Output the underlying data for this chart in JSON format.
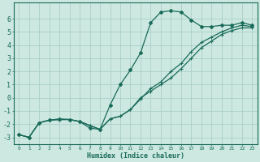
{
  "xlabel": "Humidex (Indice chaleur)",
  "background_color": "#cce8e0",
  "grid_color": "#aacfc8",
  "line_color": "#1a6b5a",
  "xlim": [
    -0.5,
    23.5
  ],
  "ylim": [
    -3.5,
    7.2
  ],
  "x_ticks": [
    0,
    1,
    2,
    3,
    4,
    5,
    6,
    7,
    8,
    9,
    10,
    11,
    12,
    13,
    14,
    15,
    16,
    17,
    18,
    19,
    20,
    21,
    22,
    23
  ],
  "y_ticks": [
    -3,
    -2,
    -1,
    0,
    1,
    2,
    3,
    4,
    5,
    6
  ],
  "curve1_x": [
    0,
    1,
    2,
    3,
    4,
    5,
    6,
    7,
    8,
    9,
    10,
    11,
    12,
    13,
    14,
    15,
    16,
    17,
    18,
    19,
    20,
    21,
    22,
    23
  ],
  "curve1_y": [
    -2.8,
    -3.0,
    -1.9,
    -1.7,
    -1.6,
    -1.65,
    -1.8,
    -2.3,
    -2.4,
    -0.55,
    1.0,
    2.1,
    3.4,
    5.7,
    6.5,
    6.6,
    6.5,
    5.9,
    5.4,
    5.4,
    5.5,
    5.5,
    5.7,
    5.5
  ],
  "curve2_x": [
    0,
    1,
    2,
    3,
    4,
    5,
    6,
    7,
    8,
    9,
    10,
    11,
    12,
    13,
    14,
    15,
    16,
    17,
    18,
    19,
    20,
    21,
    22,
    23
  ],
  "curve2_y": [
    -2.8,
    -3.0,
    -1.9,
    -1.7,
    -1.65,
    -1.65,
    -1.8,
    -2.1,
    -2.4,
    -1.6,
    -1.4,
    -0.9,
    -0.1,
    0.7,
    1.2,
    2.0,
    2.6,
    3.5,
    4.2,
    4.6,
    5.0,
    5.3,
    5.5,
    5.4
  ],
  "curve3_x": [
    0,
    1,
    2,
    3,
    4,
    5,
    6,
    7,
    8,
    9,
    10,
    11,
    12,
    13,
    14,
    15,
    16,
    17,
    18,
    19,
    20,
    21,
    22,
    23
  ],
  "curve3_y": [
    -2.8,
    -3.0,
    -1.9,
    -1.7,
    -1.65,
    -1.65,
    -1.8,
    -2.1,
    -2.4,
    -1.6,
    -1.4,
    -0.9,
    0.0,
    0.5,
    1.0,
    1.5,
    2.2,
    3.0,
    3.8,
    4.3,
    4.8,
    5.1,
    5.3,
    5.3
  ]
}
